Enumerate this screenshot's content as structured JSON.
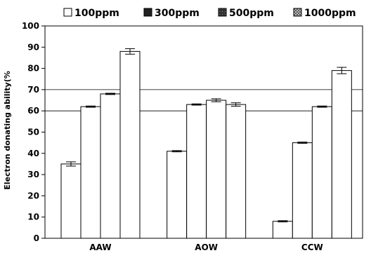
{
  "chart_data": {
    "type": "bar",
    "title": "",
    "xlabel": "",
    "ylabel": "Electron donating ability(%",
    "ylim": [
      0,
      100
    ],
    "yticks": [
      0,
      10,
      20,
      30,
      40,
      50,
      60,
      70,
      80,
      90,
      100
    ],
    "categories": [
      "AAW",
      "AOW",
      "CCW"
    ],
    "series": [
      {
        "name": "100ppm",
        "values": [
          35,
          41,
          8
        ],
        "errors": [
          1.0,
          0.3,
          0.3
        ]
      },
      {
        "name": "300ppm",
        "values": [
          62,
          63,
          45
        ],
        "errors": [
          0.3,
          0.3,
          0.3
        ]
      },
      {
        "name": "500ppm",
        "values": [
          68,
          65,
          62
        ],
        "errors": [
          0.3,
          0.7,
          0.3
        ]
      },
      {
        "name": "1000ppm",
        "values": [
          88,
          63,
          79
        ],
        "errors": [
          1.3,
          0.8,
          1.5
        ]
      }
    ],
    "reference_lines": [
      60,
      70
    ],
    "grid": false,
    "legend_position": "top"
  }
}
